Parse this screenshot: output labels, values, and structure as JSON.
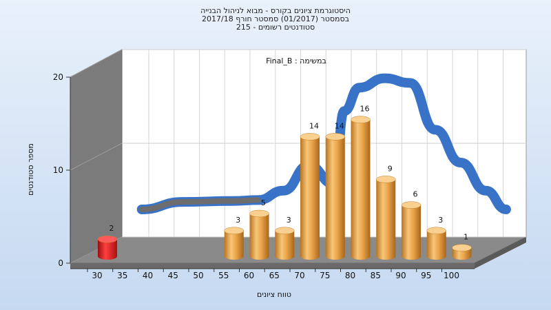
{
  "title_lines": [
    "היסטוגרמת ציונים בקורס - מבוא לניהול הבנייה",
    "בסמסטר  (01/2017)  סמסטר חורף  2017/18",
    "סטודנטים רשומים - 215"
  ],
  "chart_data": {
    "type": "bar",
    "subtitle": "במשימה : Final_B",
    "xlabel": "טווח ציונים",
    "ylabel": "מספר סטודנטים",
    "x_ticks": [
      "30",
      "35",
      "40",
      "45",
      "50",
      "55",
      "60",
      "65",
      "70",
      "75",
      "80",
      "85",
      "90",
      "95",
      "100"
    ],
    "y_ticks": [
      "0",
      "10",
      "20"
    ],
    "ylim": [
      0,
      20
    ],
    "series": [
      {
        "color": "#e02020",
        "bars": [
          {
            "x": 30,
            "value": 2,
            "label": "2"
          }
        ]
      },
      {
        "color": "#e8a23c",
        "bars": [
          {
            "x": 55,
            "value": 3,
            "label": "3"
          },
          {
            "x": 60,
            "value": 5,
            "label": "5"
          },
          {
            "x": 65,
            "value": 3,
            "label": "3"
          },
          {
            "x": 70,
            "value": 14,
            "label": "14"
          },
          {
            "x": 75,
            "value": 14,
            "label": "14"
          },
          {
            "x": 80,
            "value": 16,
            "label": "16"
          },
          {
            "x": 85,
            "value": 9,
            "label": "9"
          },
          {
            "x": 90,
            "value": 6,
            "label": "6"
          },
          {
            "x": 95,
            "value": 3,
            "label": "3"
          },
          {
            "x": 100,
            "value": 1,
            "label": "1"
          }
        ]
      }
    ],
    "curve": {
      "color": "#2e6cc4",
      "points": [
        [
          32,
          2.5
        ],
        [
          40,
          3.3
        ],
        [
          50,
          3.4
        ],
        [
          55,
          3.5
        ],
        [
          60,
          4.5
        ],
        [
          65,
          7.2
        ],
        [
          70,
          5.2
        ],
        [
          72,
          13
        ],
        [
          75,
          15.5
        ],
        [
          80,
          16.5
        ],
        [
          85,
          16
        ],
        [
          90,
          11
        ],
        [
          95,
          7.5
        ],
        [
          100,
          4.5
        ],
        [
          104,
          2.5
        ]
      ]
    }
  }
}
